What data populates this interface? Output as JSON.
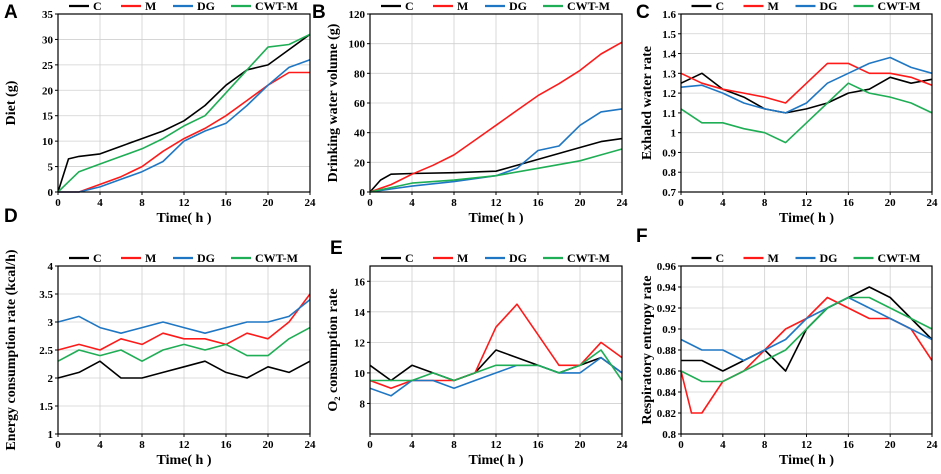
{
  "figure": {
    "series_colors": {
      "C": "#000000",
      "M": "#ff1a1a",
      "DG": "#1f77c4",
      "CWT-M": "#1fae55"
    }
  },
  "chart_data": [
    {
      "id": "A",
      "panel_letter": "A",
      "type": "line",
      "xlabel": "Time( h )",
      "ylabel": "Diet (g)",
      "xlim": [
        0,
        24
      ],
      "xticks": [
        0,
        4,
        8,
        12,
        16,
        20,
        24
      ],
      "ylim": [
        0,
        35
      ],
      "yticks": [
        0,
        5,
        10,
        15,
        20,
        25,
        30,
        35
      ],
      "ytick_labels": [
        "0",
        "5",
        "10",
        "15",
        "20",
        "25",
        "30",
        "35"
      ],
      "legend": [
        "C",
        "M",
        "DG",
        "CWT-M"
      ],
      "series": [
        {
          "name": "C",
          "x": [
            0,
            1,
            2,
            4,
            6,
            8,
            10,
            12,
            14,
            16,
            18,
            20,
            22,
            24
          ],
          "values": [
            0,
            6.5,
            7,
            7.5,
            9,
            10.5,
            12,
            14,
            17,
            21,
            24,
            25,
            28,
            31
          ]
        },
        {
          "name": "M",
          "x": [
            0,
            2,
            4,
            6,
            8,
            10,
            12,
            14,
            16,
            18,
            20,
            22,
            24
          ],
          "values": [
            0,
            0,
            1.5,
            3,
            5,
            8,
            10.5,
            12.5,
            15,
            18,
            21,
            23.5,
            23.5
          ]
        },
        {
          "name": "DG",
          "x": [
            0,
            2,
            4,
            6,
            8,
            10,
            12,
            14,
            16,
            18,
            20,
            22,
            24
          ],
          "values": [
            0,
            0,
            1,
            2.5,
            4,
            6,
            10,
            12,
            13.5,
            17,
            21,
            24.5,
            26
          ]
        },
        {
          "name": "CWT-M",
          "x": [
            0,
            1,
            2,
            4,
            6,
            8,
            10,
            12,
            14,
            16,
            18,
            20,
            22,
            24
          ],
          "values": [
            0,
            2,
            4,
            5.5,
            7,
            8.5,
            10.5,
            13,
            15,
            19.5,
            24,
            28.5,
            29,
            31
          ]
        }
      ]
    },
    {
      "id": "B",
      "panel_letter": "B",
      "type": "line",
      "xlabel": "Time( h )",
      "ylabel": "Drinking water volume (g)",
      "xlim": [
        0,
        24
      ],
      "xticks": [
        0,
        4,
        8,
        12,
        16,
        20,
        24
      ],
      "ylim": [
        0,
        120
      ],
      "yticks": [
        0,
        20,
        40,
        60,
        80,
        100,
        120
      ],
      "ytick_labels": [
        "0",
        "20",
        "40",
        "60",
        "80",
        "100",
        "120"
      ],
      "legend": [
        "C",
        "M",
        "DG",
        "CWT-M"
      ],
      "series": [
        {
          "name": "C",
          "x": [
            0,
            1,
            2,
            4,
            8,
            12,
            16,
            20,
            22,
            24
          ],
          "values": [
            0,
            8,
            12,
            12.5,
            13,
            14,
            22,
            30,
            34,
            36
          ]
        },
        {
          "name": "M",
          "x": [
            0,
            2,
            4,
            6,
            8,
            10,
            12,
            14,
            16,
            18,
            20,
            22,
            24
          ],
          "values": [
            0,
            5,
            12,
            18,
            25,
            35,
            45,
            55,
            65,
            73,
            82,
            93,
            101
          ]
        },
        {
          "name": "DG",
          "x": [
            0,
            2,
            4,
            8,
            12,
            14,
            16,
            18,
            20,
            22,
            24
          ],
          "values": [
            0,
            2,
            4,
            7,
            11,
            16,
            28,
            31,
            45,
            54,
            56
          ]
        },
        {
          "name": "CWT-M",
          "x": [
            0,
            2,
            4,
            8,
            12,
            16,
            20,
            22,
            24
          ],
          "values": [
            0,
            3,
            6,
            8,
            11,
            16,
            21,
            25,
            29
          ]
        }
      ]
    },
    {
      "id": "C",
      "panel_letter": "C",
      "type": "line",
      "xlabel": "Time( h )",
      "ylabel": "Exhaled water rate",
      "xlim": [
        0,
        24
      ],
      "xticks": [
        0,
        4,
        8,
        12,
        16,
        20,
        24
      ],
      "ylim": [
        0.7,
        1.6
      ],
      "yticks": [
        0.7,
        0.8,
        0.9,
        1.0,
        1.1,
        1.2,
        1.3,
        1.4,
        1.5,
        1.6
      ],
      "ytick_labels": [
        "0.7",
        "0.8",
        "0.9",
        "1",
        "1.1",
        "1.2",
        "1.3",
        "1.4",
        "1.5",
        "1.6"
      ],
      "legend": [
        "C",
        "M",
        "DG",
        "CWT-M"
      ],
      "series": [
        {
          "name": "C",
          "x": [
            0,
            2,
            4,
            6,
            8,
            10,
            12,
            14,
            16,
            18,
            20,
            22,
            24
          ],
          "values": [
            1.25,
            1.3,
            1.22,
            1.18,
            1.12,
            1.1,
            1.12,
            1.15,
            1.2,
            1.22,
            1.28,
            1.25,
            1.27
          ]
        },
        {
          "name": "M",
          "x": [
            0,
            2,
            4,
            6,
            8,
            10,
            12,
            14,
            16,
            18,
            20,
            22,
            24
          ],
          "values": [
            1.3,
            1.25,
            1.22,
            1.2,
            1.18,
            1.15,
            1.25,
            1.35,
            1.35,
            1.3,
            1.3,
            1.28,
            1.24
          ]
        },
        {
          "name": "DG",
          "x": [
            0,
            2,
            4,
            6,
            8,
            10,
            12,
            14,
            16,
            18,
            20,
            22,
            24
          ],
          "values": [
            1.23,
            1.24,
            1.2,
            1.15,
            1.12,
            1.1,
            1.15,
            1.25,
            1.3,
            1.35,
            1.38,
            1.33,
            1.3
          ]
        },
        {
          "name": "CWT-M",
          "x": [
            0,
            2,
            4,
            6,
            8,
            10,
            12,
            14,
            16,
            18,
            20,
            22,
            24
          ],
          "values": [
            1.12,
            1.05,
            1.05,
            1.02,
            1.0,
            0.95,
            1.05,
            1.15,
            1.25,
            1.2,
            1.18,
            1.15,
            1.1
          ]
        }
      ]
    },
    {
      "id": "D",
      "panel_letter": "D",
      "type": "line",
      "xlabel": "Time( h )",
      "ylabel": "Energy consumption rate (kcal/h)",
      "xlim": [
        0,
        24
      ],
      "xticks": [
        0,
        4,
        8,
        12,
        16,
        20,
        24
      ],
      "ylim": [
        1,
        4
      ],
      "yticks": [
        1,
        1.5,
        2,
        2.5,
        3,
        3.5,
        4
      ],
      "ytick_labels": [
        "1",
        "1.5",
        "2",
        "2.5",
        "3",
        "3.5",
        "4"
      ],
      "legend": [
        "C",
        "M",
        "DG",
        "CWT-M"
      ],
      "series": [
        {
          "name": "C",
          "x": [
            0,
            2,
            4,
            6,
            8,
            10,
            12,
            14,
            16,
            18,
            20,
            22,
            24
          ],
          "values": [
            2.0,
            2.1,
            2.3,
            2.0,
            2.0,
            2.1,
            2.2,
            2.3,
            2.1,
            2.0,
            2.2,
            2.1,
            2.3
          ]
        },
        {
          "name": "M",
          "x": [
            0,
            2,
            4,
            6,
            8,
            10,
            12,
            14,
            16,
            18,
            20,
            22,
            24
          ],
          "values": [
            2.5,
            2.6,
            2.5,
            2.7,
            2.6,
            2.8,
            2.7,
            2.7,
            2.6,
            2.8,
            2.7,
            3.0,
            3.5
          ]
        },
        {
          "name": "DG",
          "x": [
            0,
            2,
            4,
            6,
            8,
            10,
            12,
            14,
            16,
            18,
            20,
            22,
            24
          ],
          "values": [
            3.0,
            3.1,
            2.9,
            2.8,
            2.9,
            3.0,
            2.9,
            2.8,
            2.9,
            3.0,
            3.0,
            3.1,
            3.4
          ]
        },
        {
          "name": "CWT-M",
          "x": [
            0,
            2,
            4,
            6,
            8,
            10,
            12,
            14,
            16,
            18,
            20,
            22,
            24
          ],
          "values": [
            2.3,
            2.5,
            2.4,
            2.5,
            2.3,
            2.5,
            2.6,
            2.5,
            2.6,
            2.4,
            2.4,
            2.7,
            2.9
          ]
        }
      ]
    },
    {
      "id": "E",
      "panel_letter": "E",
      "type": "line",
      "xlabel": "Time( h )",
      "ylabel": "O₂ consumption rate",
      "xlim": [
        0,
        24
      ],
      "xticks": [
        0,
        4,
        8,
        12,
        16,
        20,
        24
      ],
      "ylim": [
        6,
        17
      ],
      "yticks": [
        8,
        10,
        12,
        14,
        16
      ],
      "ytick_labels": [
        "8",
        "10",
        "12",
        "14",
        "16"
      ],
      "legend": [
        "C",
        "M",
        "DG",
        "CWT-M"
      ],
      "series": [
        {
          "name": "C",
          "x": [
            0,
            2,
            4,
            6,
            8,
            10,
            12,
            14,
            16,
            18,
            20,
            22,
            24
          ],
          "values": [
            10.5,
            9.5,
            10.5,
            10,
            9.5,
            10,
            11.5,
            11,
            10.5,
            10,
            10.5,
            11,
            10
          ]
        },
        {
          "name": "M",
          "x": [
            0,
            2,
            4,
            6,
            8,
            10,
            12,
            14,
            16,
            18,
            20,
            22,
            24
          ],
          "values": [
            9.5,
            9,
            9.5,
            9.5,
            9.5,
            10,
            13,
            14.5,
            12.5,
            10.5,
            10.5,
            12,
            11
          ]
        },
        {
          "name": "DG",
          "x": [
            0,
            2,
            4,
            6,
            8,
            10,
            12,
            14,
            16,
            18,
            20,
            22,
            24
          ],
          "values": [
            9,
            8.5,
            9.5,
            9.5,
            9,
            9.5,
            10,
            10.5,
            10.5,
            10,
            10,
            11,
            10
          ]
        },
        {
          "name": "CWT-M",
          "x": [
            0,
            2,
            4,
            6,
            8,
            10,
            12,
            14,
            16,
            18,
            20,
            22,
            24
          ],
          "values": [
            9.5,
            9.5,
            9.5,
            10,
            9.5,
            10,
            10.5,
            10.5,
            10.5,
            10,
            10.5,
            11.5,
            9.5
          ]
        }
      ]
    },
    {
      "id": "F",
      "panel_letter": "F",
      "type": "line",
      "xlabel": "Time( h )",
      "ylabel": "Respiratory entropy rate",
      "xlim": [
        0,
        24
      ],
      "xticks": [
        0,
        4,
        8,
        12,
        16,
        20,
        24
      ],
      "ylim": [
        0.8,
        0.96
      ],
      "yticks": [
        0.8,
        0.82,
        0.84,
        0.86,
        0.88,
        0.9,
        0.92,
        0.94,
        0.96
      ],
      "ytick_labels": [
        "0.8",
        "0.82",
        "0.84",
        "0.86",
        "0.88",
        "0.9",
        "0.92",
        "0.94",
        "0.96"
      ],
      "legend": [
        "C",
        "M",
        "DG",
        "CWT-M"
      ],
      "series": [
        {
          "name": "C",
          "x": [
            0,
            2,
            4,
            6,
            8,
            10,
            12,
            14,
            16,
            18,
            20,
            22,
            24
          ],
          "values": [
            0.87,
            0.87,
            0.86,
            0.87,
            0.88,
            0.86,
            0.9,
            0.92,
            0.93,
            0.94,
            0.93,
            0.91,
            0.89
          ]
        },
        {
          "name": "M",
          "x": [
            0,
            1,
            2,
            4,
            6,
            8,
            10,
            12,
            14,
            16,
            18,
            20,
            22,
            24
          ],
          "values": [
            0.86,
            0.82,
            0.82,
            0.85,
            0.86,
            0.88,
            0.9,
            0.91,
            0.93,
            0.92,
            0.91,
            0.91,
            0.9,
            0.87
          ]
        },
        {
          "name": "DG",
          "x": [
            0,
            2,
            4,
            6,
            8,
            10,
            12,
            14,
            16,
            18,
            20,
            22,
            24
          ],
          "values": [
            0.89,
            0.88,
            0.88,
            0.87,
            0.88,
            0.89,
            0.91,
            0.92,
            0.93,
            0.92,
            0.91,
            0.9,
            0.89
          ]
        },
        {
          "name": "CWT-M",
          "x": [
            0,
            2,
            4,
            6,
            8,
            10,
            12,
            14,
            16,
            18,
            20,
            22,
            24
          ],
          "values": [
            0.86,
            0.85,
            0.85,
            0.86,
            0.87,
            0.88,
            0.9,
            0.92,
            0.93,
            0.93,
            0.92,
            0.91,
            0.9
          ]
        }
      ]
    }
  ]
}
